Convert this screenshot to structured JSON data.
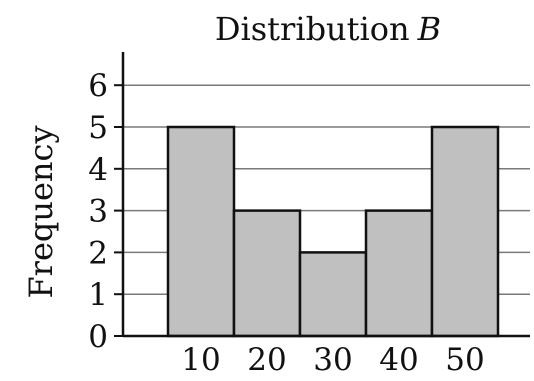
{
  "chart_data": {
    "type": "bar",
    "title": "Distribution",
    "title_variable": "B",
    "xlabel": "",
    "ylabel": "Frequency",
    "categories": [
      "10",
      "20",
      "30",
      "40",
      "50"
    ],
    "values": [
      5,
      3,
      2,
      3,
      5
    ],
    "yticks": [
      "0",
      "1",
      "2",
      "3",
      "4",
      "5",
      "6"
    ],
    "ylim": [
      0,
      6.5
    ],
    "grid": "horizontal",
    "legend": "none",
    "bar_color": "#c0c0c0",
    "edge_color": "#111111"
  }
}
